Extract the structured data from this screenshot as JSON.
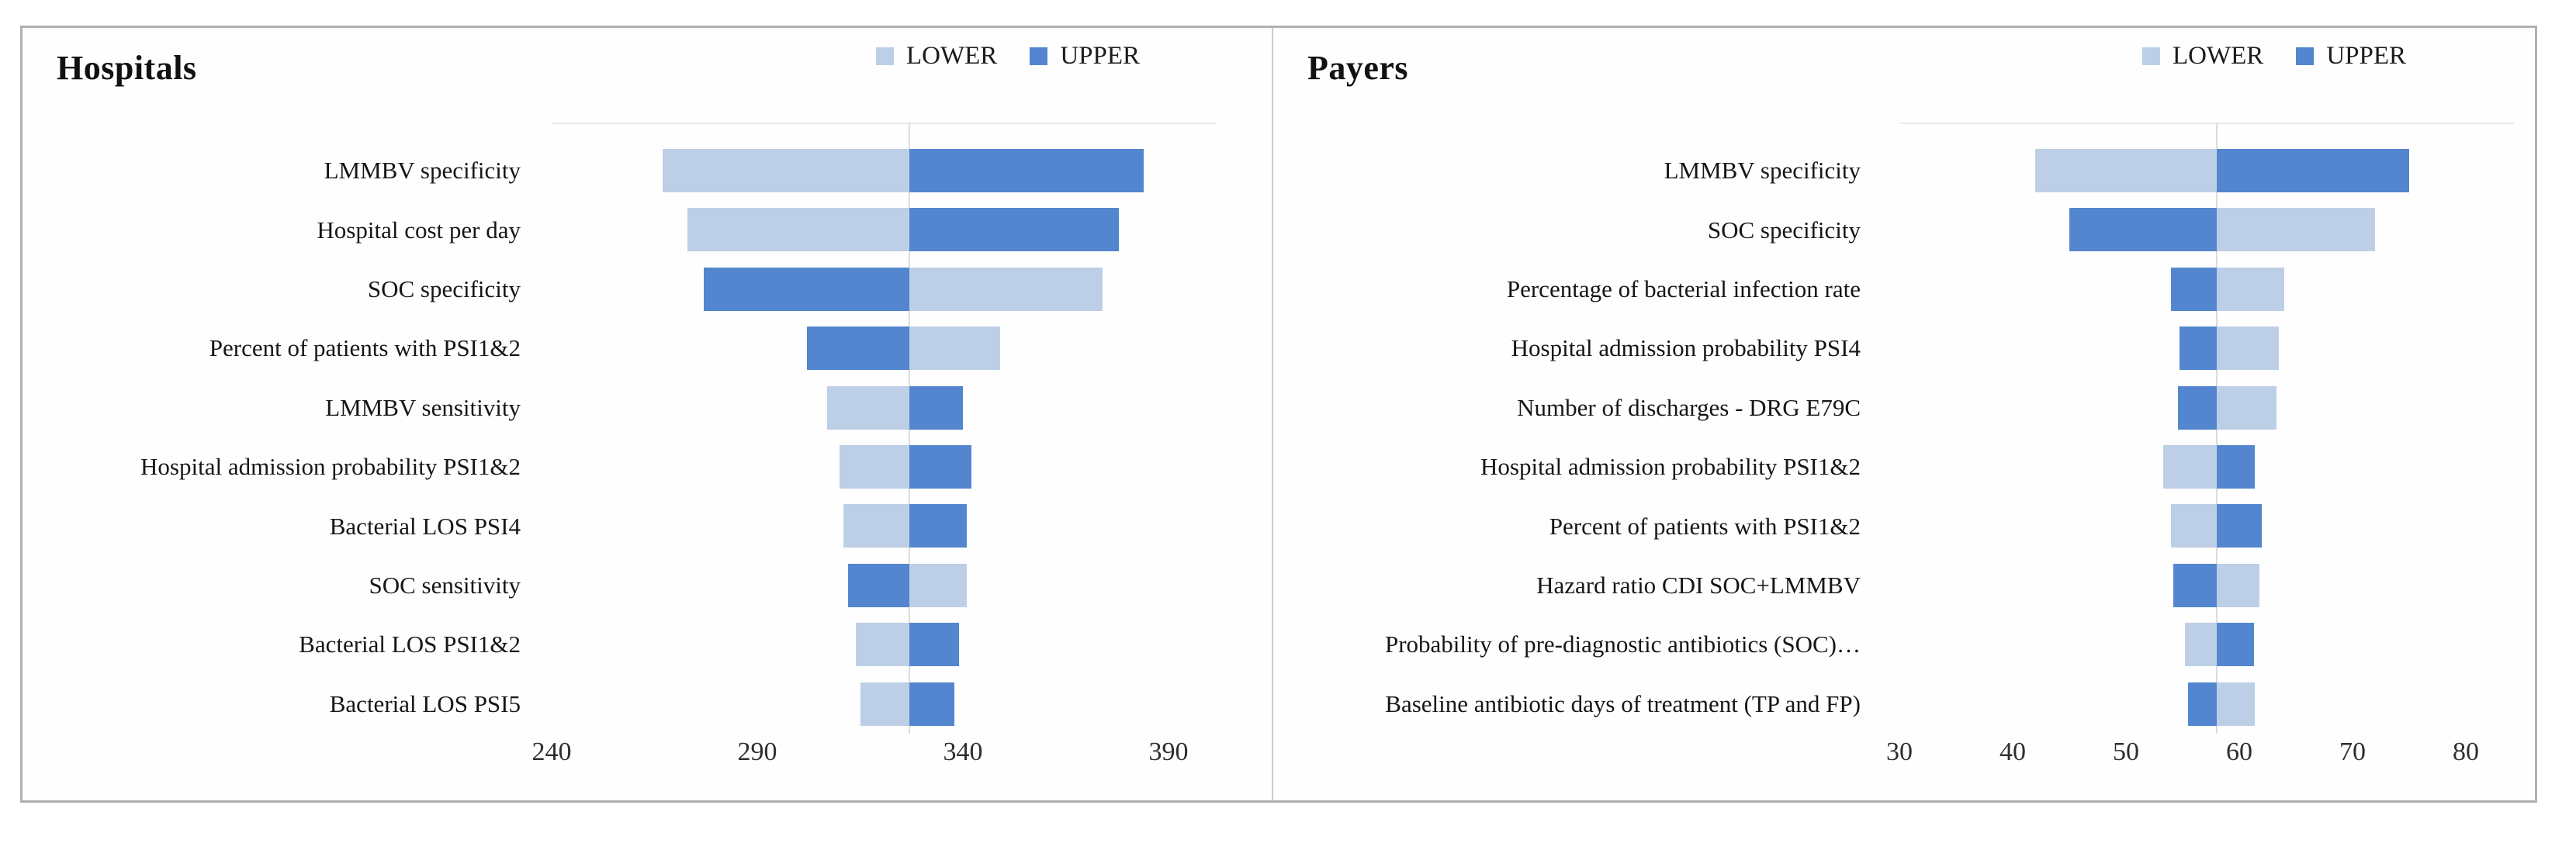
{
  "legend": {
    "lower": "LOWER",
    "upper": "UPPER"
  },
  "colors": {
    "lower": "#BDCFE7",
    "upper": "#5486CF"
  },
  "chart_data": [
    {
      "type": "bar",
      "subtype": "tornado",
      "title": "Hospitals",
      "legend_entries": [
        "LOWER",
        "UPPER"
      ],
      "legend_position": "top-right",
      "base_value": 327,
      "axis": {
        "min": 240,
        "max": 390,
        "ticks": [
          240,
          290,
          340,
          390
        ]
      },
      "rows": [
        {
          "label": "LMMBV specificity",
          "lower": 267,
          "upper": 384
        },
        {
          "label": "Hospital cost per day",
          "lower": 273,
          "upper": 378
        },
        {
          "label": "SOC specificity",
          "lower": 374,
          "upper": 277
        },
        {
          "label": "Percent of patients with PSI1&2",
          "lower": 349,
          "upper": 302
        },
        {
          "label": "LMMBV sensitivity",
          "lower": 307,
          "upper": 340
        },
        {
          "label": "Hospital admission probability PSI1&2",
          "lower": 310,
          "upper": 342
        },
        {
          "label": "Bacterial LOS PSI4",
          "lower": 311,
          "upper": 341
        },
        {
          "label": "SOC sensitivity",
          "lower": 341,
          "upper": 312
        },
        {
          "label": "Bacterial LOS PSI1&2",
          "lower": 314,
          "upper": 339
        },
        {
          "label": "Bacterial LOS PSI5",
          "lower": 315,
          "upper": 338
        }
      ]
    },
    {
      "type": "bar",
      "subtype": "tornado",
      "title": "Payers",
      "legend_entries": [
        "LOWER",
        "UPPER"
      ],
      "legend_position": "top-right",
      "base_value": 58,
      "axis": {
        "min": 30,
        "max": 80,
        "ticks": [
          30,
          40,
          50,
          60,
          70,
          80
        ]
      },
      "rows": [
        {
          "label": "LMMBV specificity",
          "lower": 42,
          "upper": 75
        },
        {
          "label": "SOC specificity",
          "lower": 72,
          "upper": 45
        },
        {
          "label": "Percentage of bacterial infection rate",
          "lower": 64,
          "upper": 54
        },
        {
          "label": "Hospital admission probability PSI4",
          "lower": 63.5,
          "upper": 54.7
        },
        {
          "label": "Number of discharges - DRG E79C",
          "lower": 63.3,
          "upper": 54.6
        },
        {
          "label": "Hospital admission probability PSI1&2",
          "lower": 53.3,
          "upper": 61.4
        },
        {
          "label": "Percent of patients with PSI1&2",
          "lower": 54,
          "upper": 62
        },
        {
          "label": "Hazard ratio CDI SOC+LMMBV",
          "lower": 61.8,
          "upper": 54.2
        },
        {
          "label": "Probability of pre-diagnostic antibiotics (SOC)…",
          "lower": 55.2,
          "upper": 61.3
        },
        {
          "label": "Baseline antibiotic days of treatment (TP and FP)",
          "lower": 61.4,
          "upper": 55.5
        }
      ]
    }
  ]
}
